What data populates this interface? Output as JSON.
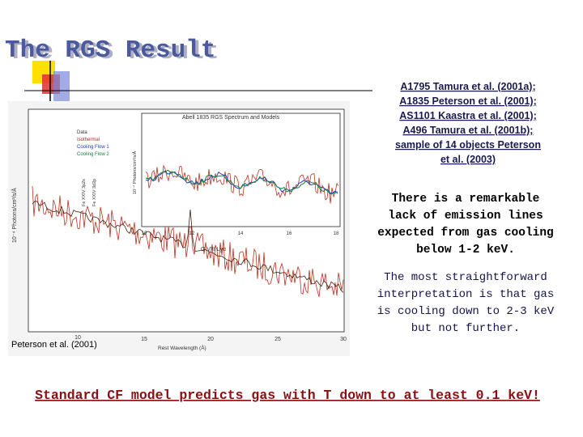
{
  "header": {
    "title": "The RGS Result"
  },
  "figure": {
    "title": "Abell 1835 RGS Spectrum and Models",
    "legend": [
      "Data",
      "Isothermal",
      "Cooling Flow 1",
      "Cooling Flow 2"
    ],
    "y_label": "10⁻⁴ Photons/cm²/s/Å",
    "x_label": "Rest Wavelength (Å)",
    "x_ticks": [
      "10",
      "15",
      "20",
      "25",
      "30"
    ],
    "inset_x_ticks": [
      "10",
      "12",
      "14",
      "16",
      "18"
    ],
    "inset_y_label": "10⁻⁴ Photons/cm²/s/Å",
    "line_labels": [
      "Fe XXIV 3p2s",
      "Fe XXIV 3d2p"
    ],
    "annotation": "O VIII Lyα",
    "credit": "Peterson et al. (2001)"
  },
  "references": [
    "A1795 Tamura et al. (2001a);",
    "A1835 Peterson et al. (2001);",
    "AS1101 Kaastra et al. (2001);",
    "A496 Tamura et al. (2001b);",
    "sample of  14 objects Peterson",
    "et al. (2003)"
  ],
  "finding": [
    "There is a remarkable",
    "lack of emission lines",
    "expected from gas cooling",
    "below 1-2 keV."
  ],
  "interpretation": [
    "The most straightforward",
    "interpretation is that gas",
    "is cooling down to 2-3 keV",
    "but not further."
  ],
  "conclusion": "Standard CF model predicts gas with T down to at least 0.1 keV!"
}
